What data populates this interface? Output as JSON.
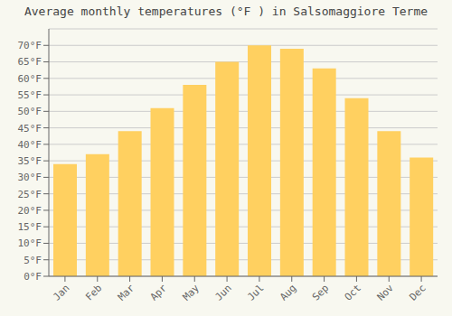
{
  "chart_data": {
    "type": "bar",
    "title": "Average monthly temperatures (°F ) in Salsomaggiore Terme",
    "categories": [
      "Jan",
      "Feb",
      "Mar",
      "Apr",
      "May",
      "Jun",
      "Jul",
      "Aug",
      "Sep",
      "Oct",
      "Nov",
      "Dec"
    ],
    "values": [
      34,
      37,
      44,
      51,
      58,
      65,
      70,
      69,
      63,
      54,
      44,
      36
    ],
    "color": "#FFD060",
    "ylim": [
      0,
      75
    ],
    "yticks": [
      {
        "value": 0,
        "label": "0°F"
      },
      {
        "value": 5,
        "label": "5°F"
      },
      {
        "value": 10,
        "label": "10°F"
      },
      {
        "value": 15,
        "label": "15°F"
      },
      {
        "value": 20,
        "label": "20°F"
      },
      {
        "value": 25,
        "label": "25°F"
      },
      {
        "value": 30,
        "label": "30°F"
      },
      {
        "value": 35,
        "label": "35°F"
      },
      {
        "value": 40,
        "label": "40°F"
      },
      {
        "value": 45,
        "label": "45°F"
      },
      {
        "value": 50,
        "label": "50°F"
      },
      {
        "value": 55,
        "label": "55°F"
      },
      {
        "value": 60,
        "label": "60°F"
      },
      {
        "value": 65,
        "label": "65°F"
      },
      {
        "value": 70,
        "label": "70°F"
      }
    ],
    "grid": true
  }
}
